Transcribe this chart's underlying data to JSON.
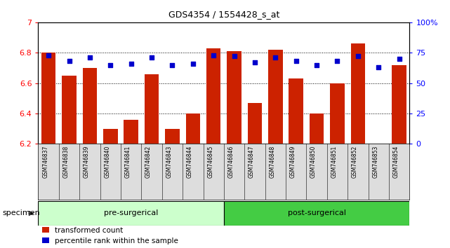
{
  "title": "GDS4354 / 1554428_s_at",
  "samples": [
    "GSM746837",
    "GSM746838",
    "GSM746839",
    "GSM746840",
    "GSM746841",
    "GSM746842",
    "GSM746843",
    "GSM746844",
    "GSM746845",
    "GSM746846",
    "GSM746847",
    "GSM746848",
    "GSM746849",
    "GSM746850",
    "GSM746851",
    "GSM746852",
    "GSM746853",
    "GSM746854"
  ],
  "transformed_count": [
    6.8,
    6.65,
    6.7,
    6.3,
    6.36,
    6.66,
    6.3,
    6.4,
    6.83,
    6.81,
    6.47,
    6.82,
    6.63,
    6.4,
    6.6,
    6.86,
    6.2,
    6.72
  ],
  "percentile_rank": [
    73,
    68,
    71,
    65,
    66,
    71,
    65,
    66,
    73,
    72,
    67,
    71,
    68,
    65,
    68,
    72,
    63,
    70
  ],
  "pre_surgical_count": 9,
  "post_surgical_count": 9,
  "ylim_left": [
    6.2,
    7.0
  ],
  "ylim_right": [
    0,
    100
  ],
  "bar_color": "#cc2200",
  "dot_color": "#0000cc",
  "pre_color": "#ccffcc",
  "post_color": "#44cc44",
  "pre_label": "pre-surgerical",
  "post_label": "post-surgerical",
  "legend_red": "transformed count",
  "legend_blue": "percentile rank within the sample",
  "specimen_label": "specimen",
  "yticks_left": [
    6.2,
    6.4,
    6.6,
    6.8,
    7.0
  ],
  "ytick_labels_left": [
    "6.2",
    "6.4",
    "6.6",
    "6.8",
    "7"
  ],
  "yticks_right": [
    0,
    25,
    50,
    75,
    100
  ],
  "ytick_labels_right": [
    "0",
    "25",
    "50",
    "75",
    "100%"
  ],
  "bg_color": "#dddddd",
  "plot_bg": "#ffffff"
}
